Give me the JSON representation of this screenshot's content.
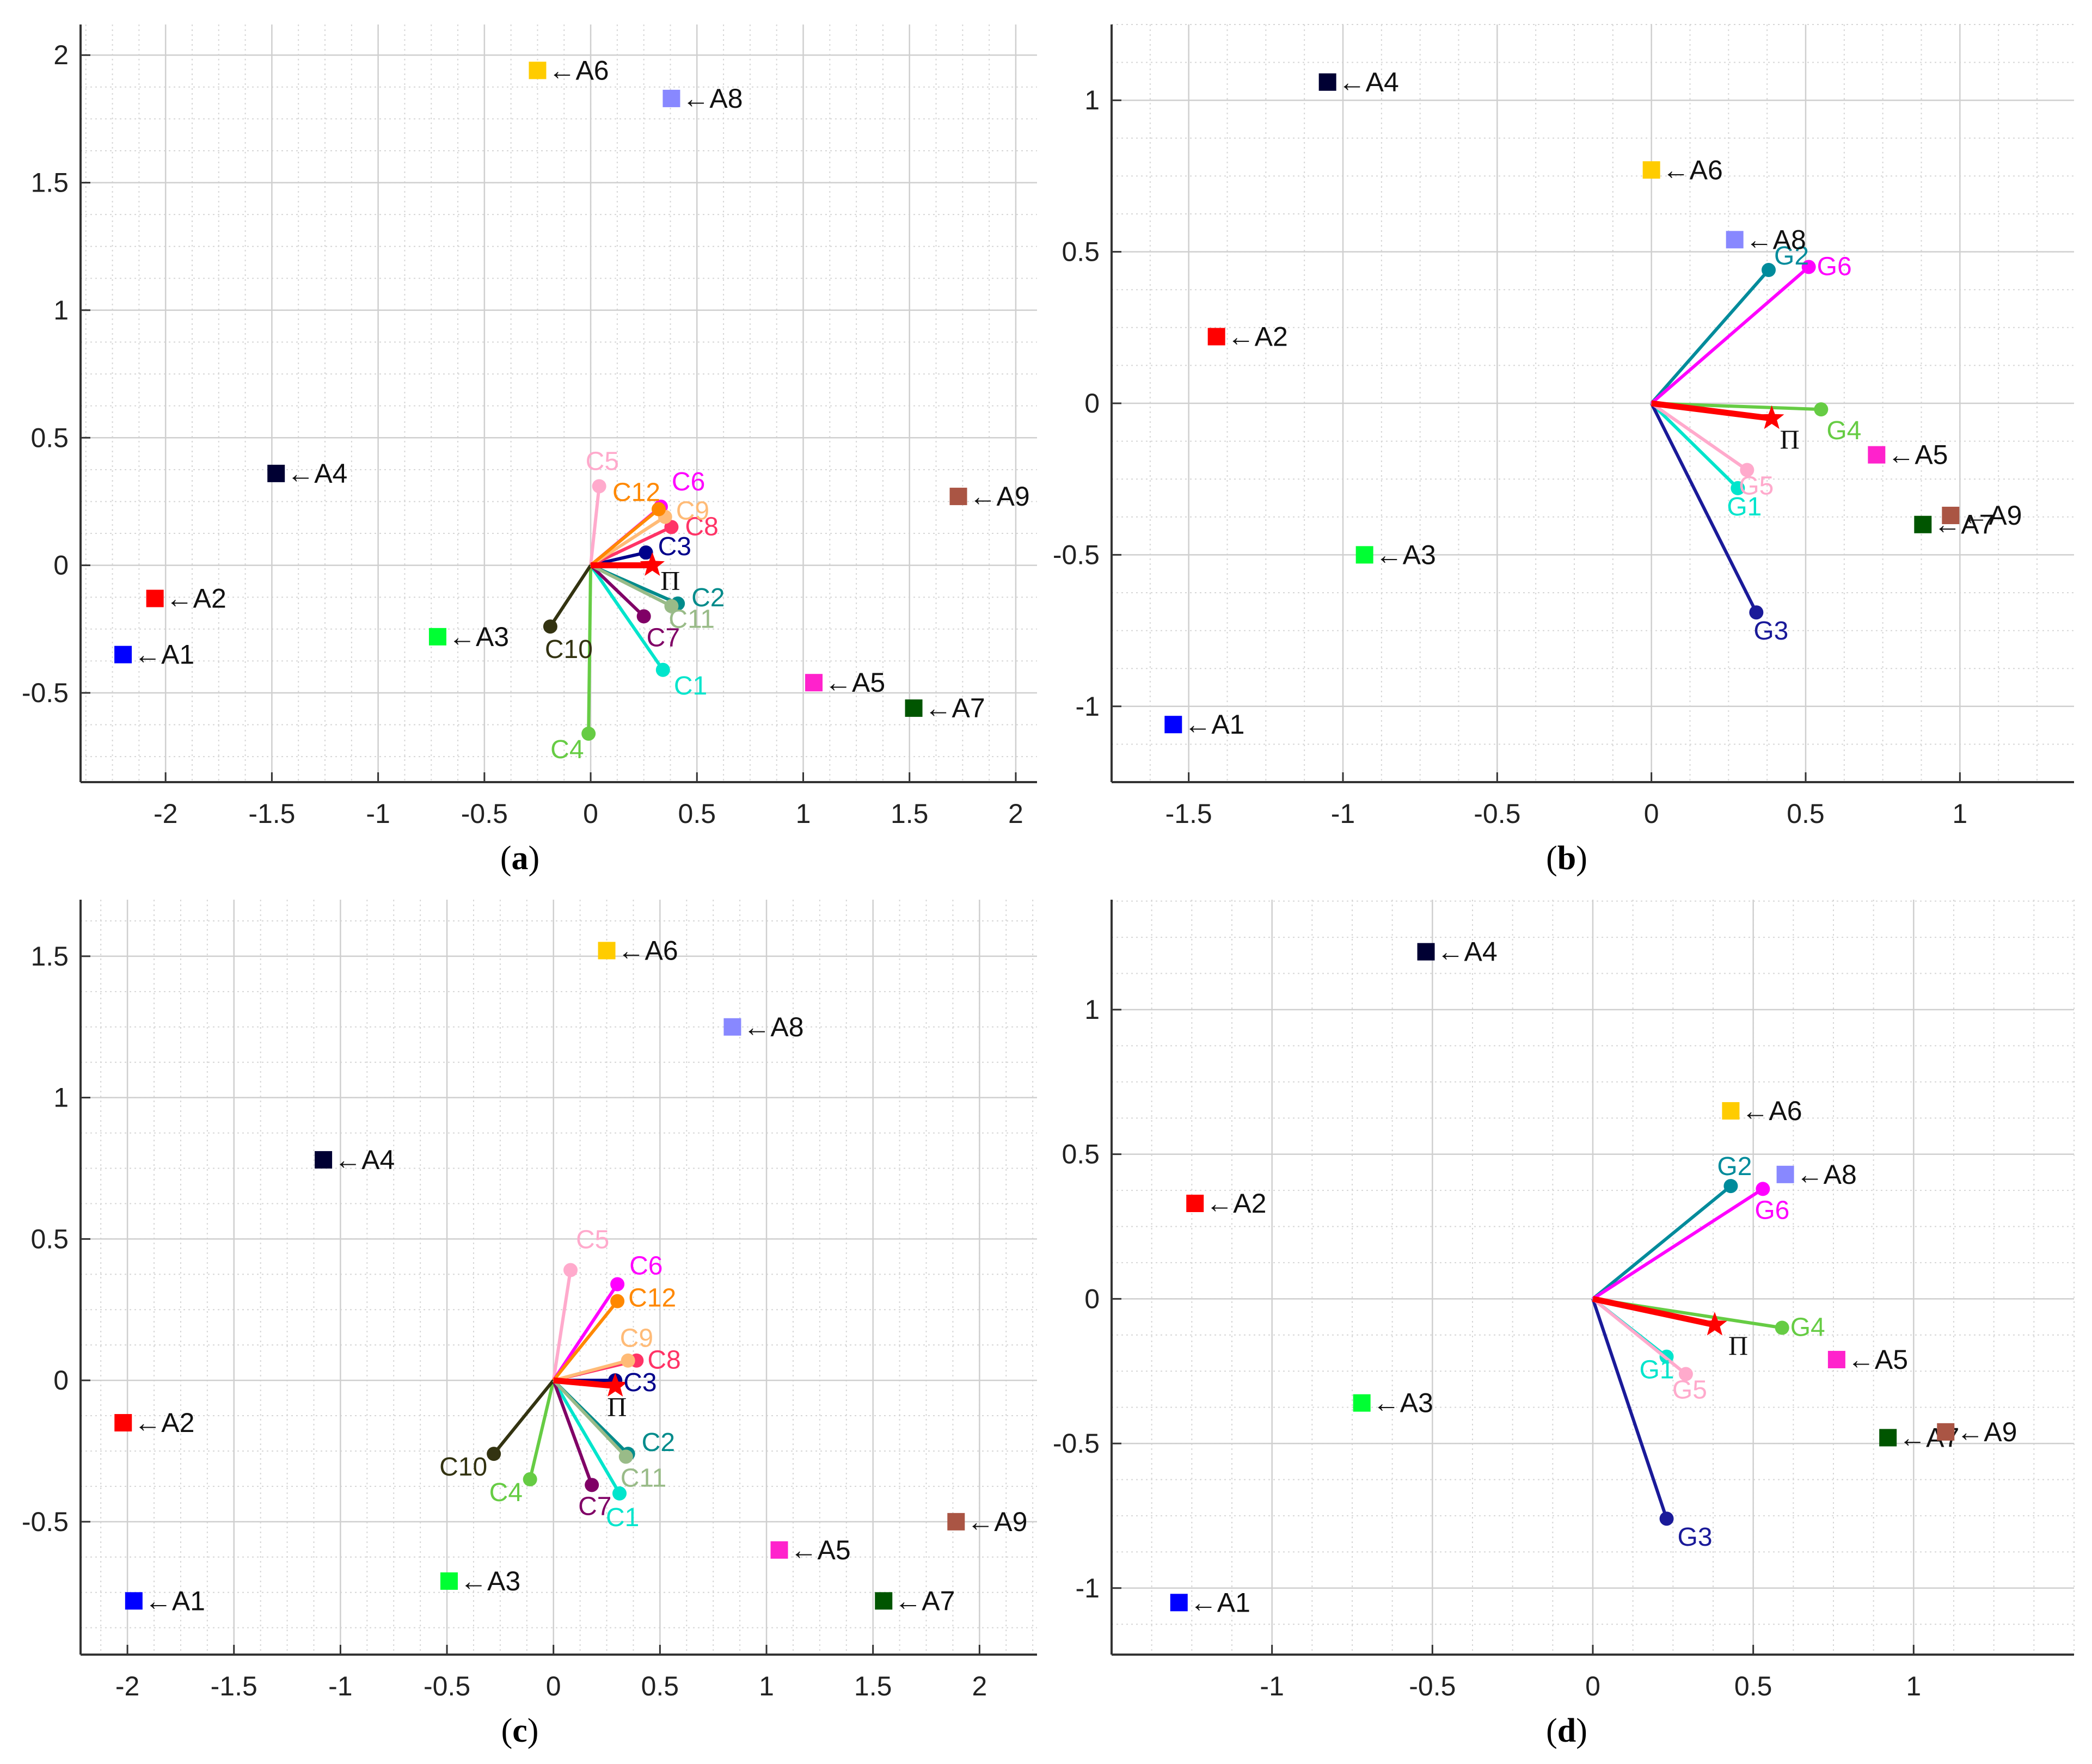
{
  "panels_caption_note": "",
  "chart_data": [
    {
      "type": "scatter",
      "panel": "a",
      "caption_letter": "a",
      "xlim": [
        -2.4,
        2.1
      ],
      "ylim": [
        -0.85,
        2.12
      ],
      "xticks": [
        -2,
        -1.5,
        -1,
        -0.5,
        0,
        0.5,
        1,
        1.5,
        2
      ],
      "yticks": [
        -0.5,
        0,
        0.5,
        1,
        1.5,
        2
      ],
      "xtick_labels": [
        "-2",
        "-1.5",
        "-1",
        "-0.5",
        "0",
        "0.5",
        "1",
        "1.5",
        "2"
      ],
      "ytick_labels": [
        "-0.5",
        "0",
        "0.5",
        "1",
        "1.5",
        "2"
      ],
      "grid": true,
      "alternatives": [
        {
          "label": "←A1",
          "x": -2.2,
          "y": -0.35,
          "color": "#0000ff"
        },
        {
          "label": "←A2",
          "x": -2.05,
          "y": -0.13,
          "color": "#ff0000"
        },
        {
          "label": "←A3",
          "x": -0.72,
          "y": -0.28,
          "color": "#00ff33"
        },
        {
          "label": "←A4",
          "x": -1.48,
          "y": 0.36,
          "color": "#000033"
        },
        {
          "label": "←A5",
          "x": 1.05,
          "y": -0.46,
          "color": "#ff22cc"
        },
        {
          "label": "←A6",
          "x": -0.25,
          "y": 1.94,
          "color": "#ffcc00"
        },
        {
          "label": "←A7",
          "x": 1.52,
          "y": -0.56,
          "color": "#005500"
        },
        {
          "label": "←A8",
          "x": 0.38,
          "y": 1.83,
          "color": "#8888ff"
        },
        {
          "label": "←A9",
          "x": 1.73,
          "y": 0.27,
          "color": "#aa5544"
        }
      ],
      "criteria": [
        {
          "label": "C1",
          "x": 0.34,
          "y": -0.41,
          "color": "#00e5cc"
        },
        {
          "label": "C2",
          "x": 0.41,
          "y": -0.15,
          "color": "#008b8b"
        },
        {
          "label": "C3",
          "x": 0.26,
          "y": 0.05,
          "color": "#00008b"
        },
        {
          "label": "C4",
          "x": -0.01,
          "y": -0.66,
          "color": "#66cc44"
        },
        {
          "label": "C5",
          "x": 0.04,
          "y": 0.31,
          "color": "#ffaacc"
        },
        {
          "label": "C6",
          "x": 0.33,
          "y": 0.23,
          "color": "#ff00ff"
        },
        {
          "label": "C7",
          "x": 0.25,
          "y": -0.2,
          "color": "#800066"
        },
        {
          "label": "C8",
          "x": 0.38,
          "y": 0.15,
          "color": "#ff3366"
        },
        {
          "label": "C9",
          "x": 0.35,
          "y": 0.19,
          "color": "#ffbb77"
        },
        {
          "label": "C10",
          "x": -0.19,
          "y": -0.24,
          "color": "#333311"
        },
        {
          "label": "C11",
          "x": 0.38,
          "y": -0.16,
          "color": "#99bb88"
        },
        {
          "label": "C12",
          "x": 0.32,
          "y": 0.22,
          "color": "#ff8800"
        }
      ],
      "pi": {
        "label": "Π",
        "x": 0.29,
        "y": 0.0,
        "color": "#ff0000"
      }
    },
    {
      "type": "scatter",
      "panel": "b",
      "caption_letter": "b",
      "xlim": [
        -1.75,
        1.37
      ],
      "ylim": [
        -1.25,
        1.25
      ],
      "xticks": [
        -1.5,
        -1,
        -0.5,
        0,
        0.5,
        1
      ],
      "yticks": [
        -1,
        -0.5,
        0,
        0.5,
        1
      ],
      "xtick_labels": [
        "-1.5",
        "-1",
        "-0.5",
        "0",
        "0.5",
        "1"
      ],
      "ytick_labels": [
        "-1",
        "-0.5",
        "0",
        "0.5",
        "1"
      ],
      "grid": true,
      "alternatives": [
        {
          "label": "←A1",
          "x": -1.55,
          "y": -1.06,
          "color": "#0000ff"
        },
        {
          "label": "←A2",
          "x": -1.41,
          "y": 0.22,
          "color": "#ff0000"
        },
        {
          "label": "←A3",
          "x": -0.93,
          "y": -0.5,
          "color": "#00ff33"
        },
        {
          "label": "←A4",
          "x": -1.05,
          "y": 1.06,
          "color": "#000033"
        },
        {
          "label": "←A5",
          "x": 0.73,
          "y": -0.17,
          "color": "#ff22cc"
        },
        {
          "label": "←A6",
          "x": 0.0,
          "y": 0.77,
          "color": "#ffcc00"
        },
        {
          "label": "←A7",
          "x": 0.88,
          "y": -0.4,
          "color": "#005500"
        },
        {
          "label": "←A8",
          "x": 0.27,
          "y": 0.54,
          "color": "#8888ff"
        },
        {
          "label": "←A9",
          "x": 0.97,
          "y": -0.37,
          "color": "#aa5544"
        }
      ],
      "criteria": [
        {
          "label": "G1",
          "x": 0.28,
          "y": -0.28,
          "color": "#00e5cc"
        },
        {
          "label": "G2",
          "x": 0.38,
          "y": 0.44,
          "color": "#008b9b"
        },
        {
          "label": "G3",
          "x": 0.34,
          "y": -0.69,
          "color": "#1a1a99"
        },
        {
          "label": "G4",
          "x": 0.55,
          "y": -0.02,
          "color": "#66cc44"
        },
        {
          "label": "G5",
          "x": 0.31,
          "y": -0.22,
          "color": "#ffaacc"
        },
        {
          "label": "G6",
          "x": 0.51,
          "y": 0.45,
          "color": "#ff00ff"
        }
      ],
      "pi": {
        "label": "Π",
        "x": 0.39,
        "y": -0.05,
        "color": "#ff0000"
      }
    },
    {
      "type": "scatter",
      "panel": "c",
      "caption_letter": "c",
      "xlim": [
        -2.22,
        2.27
      ],
      "ylim": [
        -0.97,
        1.7
      ],
      "xticks": [
        -2,
        -1.5,
        -1,
        -0.5,
        0,
        0.5,
        1,
        1.5,
        2
      ],
      "yticks": [
        -0.5,
        0,
        0.5,
        1,
        1.5
      ],
      "xtick_labels": [
        "-2",
        "-1.5",
        "-1",
        "-0.5",
        "0",
        "0.5",
        "1",
        "1.5",
        "2"
      ],
      "ytick_labels": [
        "-0.5",
        "0",
        "0.5",
        "1",
        "1.5"
      ],
      "grid": true,
      "alternatives": [
        {
          "label": "←A1",
          "x": -1.97,
          "y": -0.78,
          "color": "#0000ff"
        },
        {
          "label": "←A2",
          "x": -2.02,
          "y": -0.15,
          "color": "#ff0000"
        },
        {
          "label": "←A3",
          "x": -0.49,
          "y": -0.71,
          "color": "#00ff33"
        },
        {
          "label": "←A4",
          "x": -1.08,
          "y": 0.78,
          "color": "#000033"
        },
        {
          "label": "←A5",
          "x": 1.06,
          "y": -0.6,
          "color": "#ff22cc"
        },
        {
          "label": "←A6",
          "x": 0.25,
          "y": 1.52,
          "color": "#ffcc00"
        },
        {
          "label": "←A7",
          "x": 1.55,
          "y": -0.78,
          "color": "#005500"
        },
        {
          "label": "←A8",
          "x": 0.84,
          "y": 1.25,
          "color": "#8888ff"
        },
        {
          "label": "←A9",
          "x": 1.89,
          "y": -0.5,
          "color": "#aa5544"
        }
      ],
      "criteria": [
        {
          "label": "C1",
          "x": 0.31,
          "y": -0.4,
          "color": "#00e5cc"
        },
        {
          "label": "C2",
          "x": 0.35,
          "y": -0.26,
          "color": "#008b8b"
        },
        {
          "label": "C3",
          "x": 0.29,
          "y": 0.0,
          "color": "#00008b"
        },
        {
          "label": "C4",
          "x": -0.11,
          "y": -0.35,
          "color": "#66cc44"
        },
        {
          "label": "C5",
          "x": 0.08,
          "y": 0.39,
          "color": "#ffaacc"
        },
        {
          "label": "C6",
          "x": 0.3,
          "y": 0.34,
          "color": "#ff00ff"
        },
        {
          "label": "C7",
          "x": 0.18,
          "y": -0.37,
          "color": "#800066"
        },
        {
          "label": "C8",
          "x": 0.39,
          "y": 0.07,
          "color": "#ff3366"
        },
        {
          "label": "C9",
          "x": 0.35,
          "y": 0.07,
          "color": "#ffbb77"
        },
        {
          "label": "C10",
          "x": -0.28,
          "y": -0.26,
          "color": "#333311"
        },
        {
          "label": "C11",
          "x": 0.34,
          "y": -0.27,
          "color": "#99bb88"
        },
        {
          "label": "C12",
          "x": 0.3,
          "y": 0.28,
          "color": "#ff8800"
        }
      ],
      "pi": {
        "label": "Π",
        "x": 0.29,
        "y": -0.02,
        "color": "#ff0000"
      }
    },
    {
      "type": "scatter",
      "panel": "d",
      "caption_letter": "d",
      "xlim": [
        -1.5,
        1.5
      ],
      "ylim": [
        -1.23,
        1.38
      ],
      "xticks": [
        -1,
        -0.5,
        0,
        0.5,
        1
      ],
      "yticks": [
        -1,
        -0.5,
        0,
        0.5,
        1
      ],
      "xtick_labels": [
        "-1",
        "-0.5",
        "0",
        "0.5",
        "1"
      ],
      "ytick_labels": [
        "-1",
        "-0.5",
        "0",
        "0.5",
        "1"
      ],
      "grid": true,
      "alternatives": [
        {
          "label": "←A1",
          "x": -1.29,
          "y": -1.05,
          "color": "#0000ff"
        },
        {
          "label": "←A2",
          "x": -1.24,
          "y": 0.33,
          "color": "#ff0000"
        },
        {
          "label": "←A3",
          "x": -0.72,
          "y": -0.36,
          "color": "#00ff33"
        },
        {
          "label": "←A4",
          "x": -0.52,
          "y": 1.2,
          "color": "#000033"
        },
        {
          "label": "←A5",
          "x": 0.76,
          "y": -0.21,
          "color": "#ff22cc"
        },
        {
          "label": "←A6",
          "x": 0.43,
          "y": 0.65,
          "color": "#ffcc00"
        },
        {
          "label": "←A7",
          "x": 0.92,
          "y": -0.48,
          "color": "#005500"
        },
        {
          "label": "←A8",
          "x": 0.6,
          "y": 0.43,
          "color": "#8888ff"
        },
        {
          "label": "←A9",
          "x": 1.1,
          "y": -0.46,
          "color": "#aa5544"
        }
      ],
      "criteria": [
        {
          "label": "G1",
          "x": 0.23,
          "y": -0.2,
          "color": "#00e5cc"
        },
        {
          "label": "G2",
          "x": 0.43,
          "y": 0.39,
          "color": "#008b9b"
        },
        {
          "label": "G3",
          "x": 0.23,
          "y": -0.76,
          "color": "#1a1a99"
        },
        {
          "label": "G4",
          "x": 0.59,
          "y": -0.1,
          "color": "#66cc44"
        },
        {
          "label": "G5",
          "x": 0.29,
          "y": -0.26,
          "color": "#ffaacc"
        },
        {
          "label": "G6",
          "x": 0.53,
          "y": 0.38,
          "color": "#ff00ff"
        }
      ],
      "pi": {
        "label": "Π",
        "x": 0.38,
        "y": -0.09,
        "color": "#ff0000"
      }
    }
  ]
}
